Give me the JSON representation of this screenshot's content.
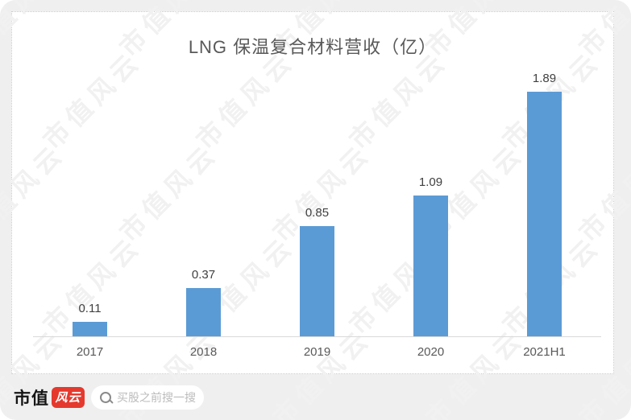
{
  "page": {
    "background_color": "#efefef",
    "card_color": "#ffffff"
  },
  "watermark": {
    "text": "市值风云",
    "color": "#f1f1f1"
  },
  "chart_data": {
    "type": "bar",
    "title": "LNG 保温复合材料营收（亿）",
    "categories": [
      "2017",
      "2018",
      "2019",
      "2020",
      "2021H1"
    ],
    "values": [
      0.11,
      0.37,
      0.85,
      1.09,
      1.89
    ],
    "value_labels": [
      "0.11",
      "0.37",
      "0.85",
      "1.09",
      "1.89"
    ],
    "xlabel": "",
    "ylabel": "",
    "ylim": [
      0,
      2.0
    ],
    "grid": false,
    "legend": "none",
    "bar_color": "#5B9BD5",
    "axis_line_color": "#d9d9d9",
    "title_color": "#595959",
    "value_label_color": "#404040",
    "tick_label_color": "#595959"
  },
  "footer": {
    "brand_text": "市值",
    "brand_badge": "风云",
    "badge_color": "#e5392e",
    "search_placeholder": "买股之前搜一搜"
  }
}
